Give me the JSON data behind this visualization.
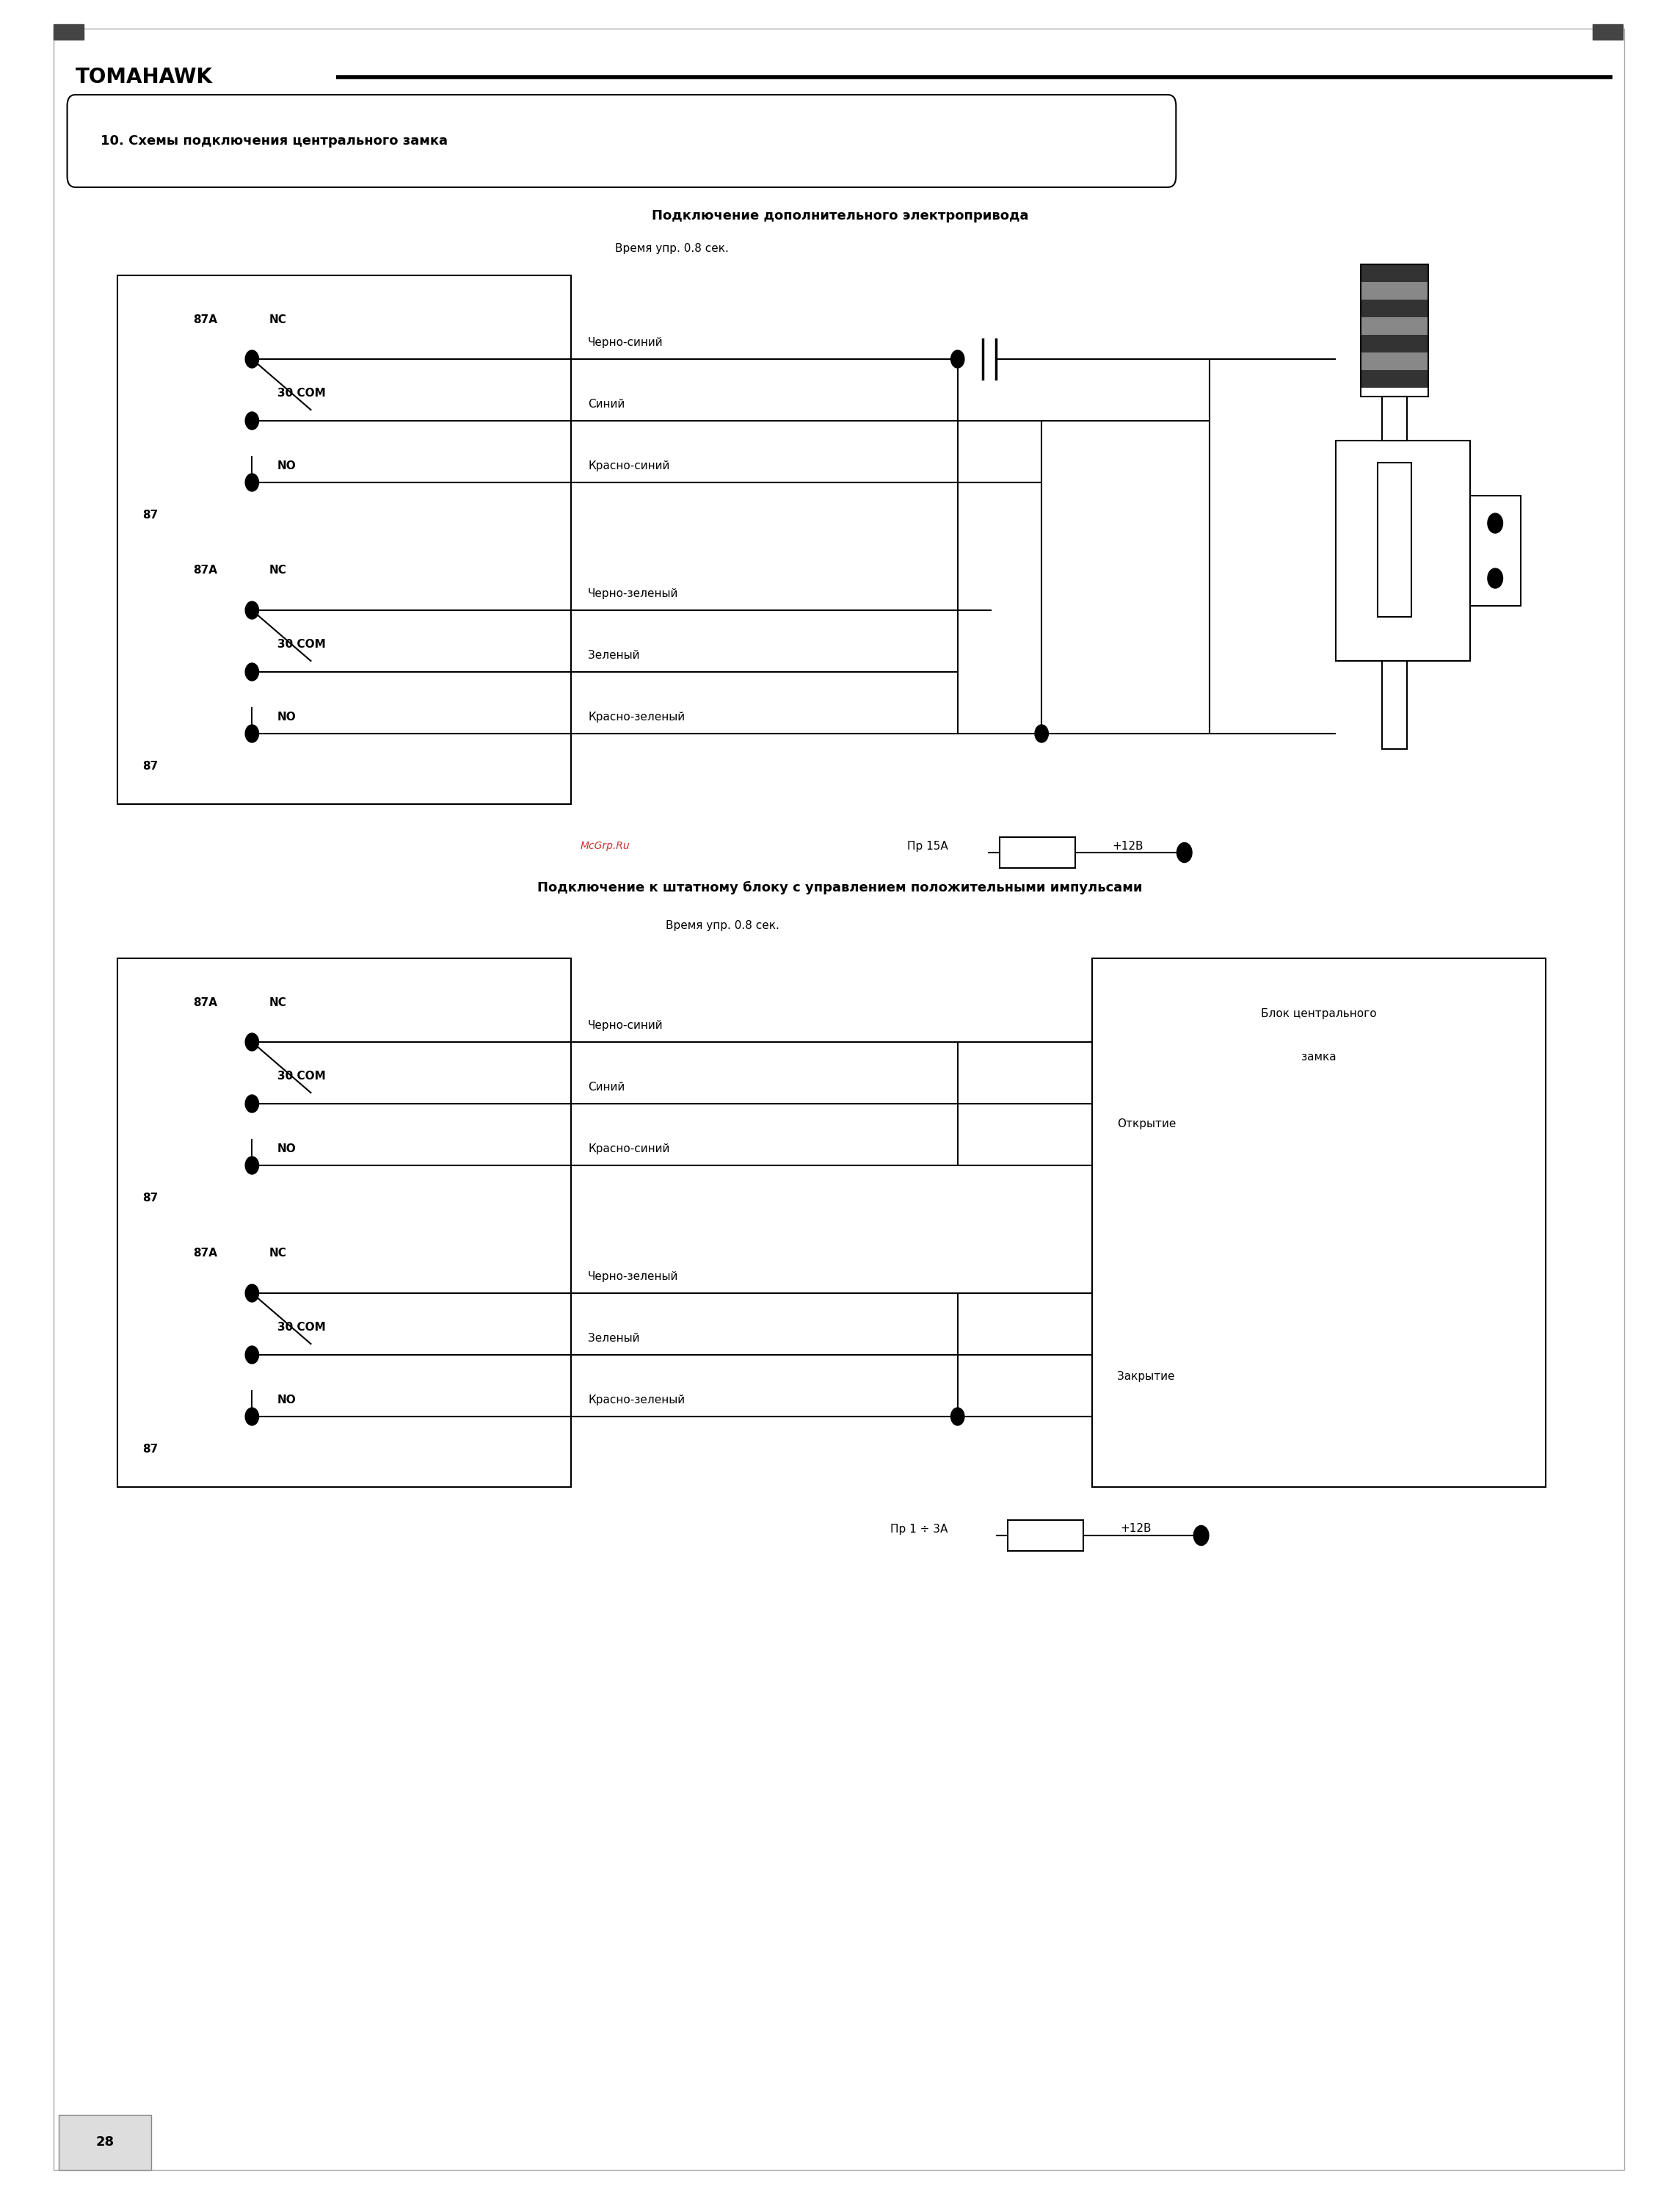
{
  "page_bg": "#ffffff",
  "page_width": 22.89,
  "page_height": 30.0,
  "brand": "TOMAHAWK",
  "section_title": "10. Схемы подключения центрального замка",
  "diagram1_title": "Подключение дополнительного электропривода",
  "diagram1_subtitle": "Время упр. 0.8 сек.",
  "diagram2_title": "Подключение к штатному блоку с управлением положительными импульсами",
  "diagram2_subtitle": "Время упр. 0.8 сек.",
  "watermark": "McGrp.Ru",
  "page_num": "28",
  "wire_labels_top": [
    "Черно-синий",
    "Синий",
    "Красно-синий"
  ],
  "wire_labels_bot": [
    "Черно-зеленый",
    "Зеленый",
    "Красно-зеленый"
  ],
  "fuse1_label": "Пр 15А",
  "fuse1_voltage": "+12В",
  "fuse2_label": "Пр 1 ÷ 3А",
  "fuse2_voltage": "+12В",
  "block_label1": "Блок центрального",
  "block_label2": "замка",
  "open_label": "Открытие",
  "close_label": "Закрытие"
}
